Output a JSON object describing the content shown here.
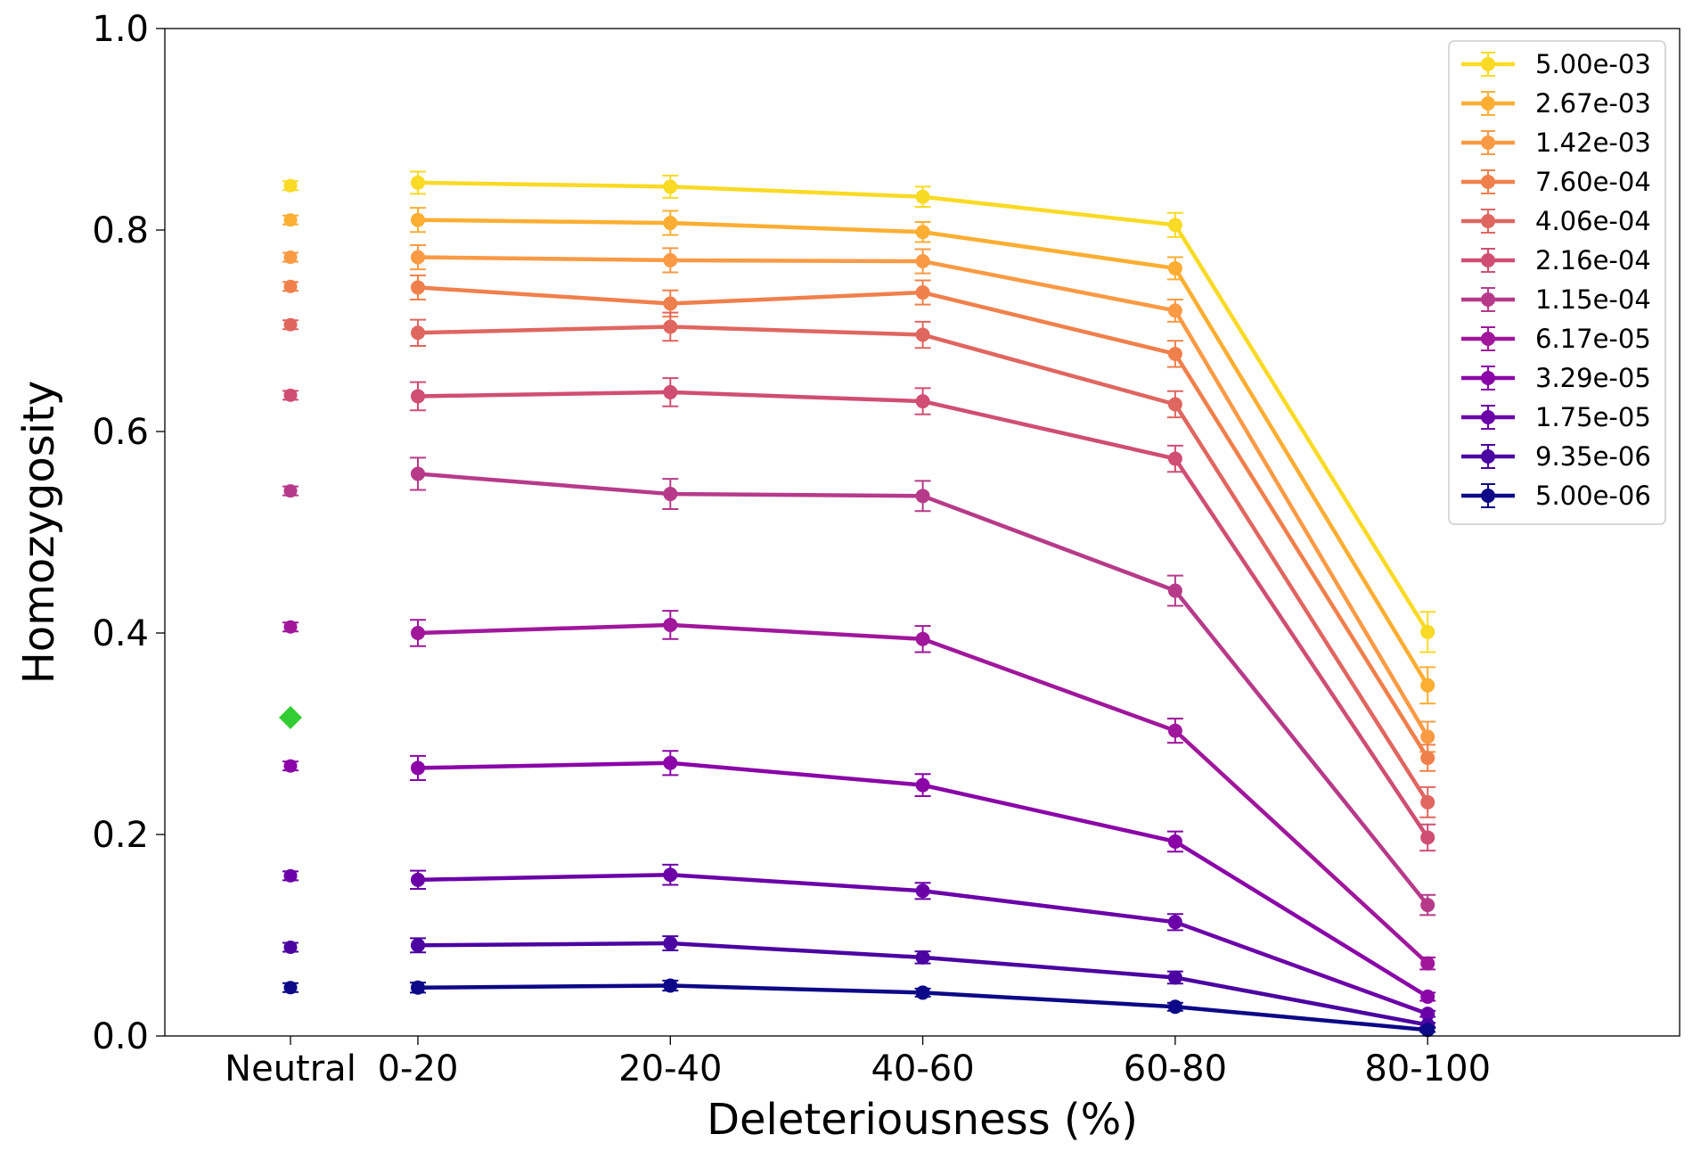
{
  "chart_data": {
    "type": "line",
    "title": "",
    "xlabel": "Deleteriousness (%)",
    "ylabel": "Homozygosity",
    "ylim": [
      0,
      1
    ],
    "yticks": [
      "0.0",
      "0.2",
      "0.4",
      "0.6",
      "0.8",
      "1.0"
    ],
    "neutral_label": "Neutral",
    "categories": [
      "0-20",
      "20-40",
      "40-60",
      "60-80",
      "80-100"
    ],
    "legend_position": "upper right",
    "grid": false,
    "extra_marker": {
      "shape": "diamond",
      "category": "Neutral",
      "value": 0.316,
      "color": "#32cd32"
    },
    "series": [
      {
        "name": "5.00e-03",
        "color": "#f9da24",
        "neutral": 0.844,
        "values": [
          0.847,
          0.843,
          0.833,
          0.805,
          0.401
        ],
        "errors": [
          0.011,
          0.011,
          0.01,
          0.012,
          0.02
        ]
      },
      {
        "name": "2.67e-03",
        "color": "#fcae32",
        "neutral": 0.81,
        "values": [
          0.81,
          0.807,
          0.798,
          0.762,
          0.348
        ],
        "errors": [
          0.012,
          0.012,
          0.01,
          0.011,
          0.018
        ]
      },
      {
        "name": "1.42e-03",
        "color": "#fa9a44",
        "neutral": 0.773,
        "values": [
          0.773,
          0.77,
          0.769,
          0.72,
          0.297
        ],
        "errors": [
          0.012,
          0.012,
          0.012,
          0.011,
          0.015
        ]
      },
      {
        "name": "7.60e-04",
        "color": "#f0804b",
        "neutral": 0.744,
        "values": [
          0.743,
          0.727,
          0.738,
          0.677,
          0.276
        ],
        "errors": [
          0.012,
          0.013,
          0.012,
          0.013,
          0.013
        ]
      },
      {
        "name": "4.06e-04",
        "color": "#e06660",
        "neutral": 0.706,
        "values": [
          0.698,
          0.704,
          0.696,
          0.627,
          0.232
        ],
        "errors": [
          0.013,
          0.014,
          0.013,
          0.013,
          0.015
        ]
      },
      {
        "name": "2.16e-04",
        "color": "#d04e73",
        "neutral": 0.636,
        "values": [
          0.635,
          0.639,
          0.63,
          0.573,
          0.197
        ],
        "errors": [
          0.014,
          0.014,
          0.013,
          0.013,
          0.013
        ]
      },
      {
        "name": "1.15e-04",
        "color": "#b73a8a",
        "neutral": 0.541,
        "values": [
          0.558,
          0.538,
          0.536,
          0.442,
          0.13
        ],
        "errors": [
          0.016,
          0.015,
          0.015,
          0.015,
          0.01
        ]
      },
      {
        "name": "6.17e-05",
        "color": "#a0179c",
        "neutral": 0.406,
        "values": [
          0.4,
          0.408,
          0.394,
          0.303,
          0.072
        ],
        "errors": [
          0.013,
          0.014,
          0.013,
          0.012,
          0.006
        ]
      },
      {
        "name": "3.29e-05",
        "color": "#8a04a8",
        "neutral": 0.268,
        "values": [
          0.266,
          0.271,
          0.249,
          0.193,
          0.039
        ],
        "errors": [
          0.012,
          0.012,
          0.011,
          0.01,
          0.004
        ]
      },
      {
        "name": "1.75e-05",
        "color": "#6b00a8",
        "neutral": 0.159,
        "values": [
          0.155,
          0.16,
          0.144,
          0.113,
          0.022
        ],
        "errors": [
          0.009,
          0.01,
          0.008,
          0.008,
          0.003
        ]
      },
      {
        "name": "9.35e-06",
        "color": "#4b03a1",
        "neutral": 0.088,
        "values": [
          0.09,
          0.092,
          0.078,
          0.058,
          0.011
        ],
        "errors": [
          0.007,
          0.007,
          0.006,
          0.006,
          0.002
        ]
      },
      {
        "name": "5.00e-06",
        "color": "#0d0887",
        "neutral": 0.048,
        "values": [
          0.048,
          0.05,
          0.043,
          0.029,
          0.006
        ],
        "errors": [
          0.005,
          0.005,
          0.004,
          0.004,
          0.002
        ]
      }
    ]
  }
}
